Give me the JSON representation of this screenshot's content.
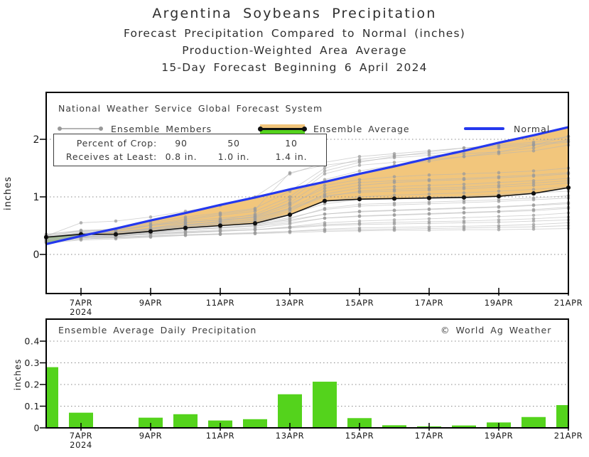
{
  "header": {
    "title": "Argentina Soybeans Precipitation",
    "subtitle1": "Forecast Precipitation Compared to Normal (inches)",
    "subtitle2": "Production-Weighted Area Average",
    "subtitle3": "15-Day Forecast Beginning 6 April 2024"
  },
  "legend": {
    "source": "National Weather Service Global Forecast System",
    "members_label": "Ensemble Members",
    "average_label": "Ensemble Average",
    "normal_label": "Normal"
  },
  "crop_box": {
    "row1_label": "Percent of Crop:",
    "row2_label": "Receives at Least:",
    "percents": [
      "90",
      "50",
      "10"
    ],
    "amounts": [
      "0.8 in.",
      "1.0 in.",
      "1.4 in."
    ]
  },
  "colors": {
    "normal_line": "#2438ee",
    "ensemble_member_line": "#b6b6b6",
    "ensemble_member_dot": "#999999",
    "ensemble_average_line": "#111111",
    "above_normal_fill": "#f2c67c",
    "below_normal_fill": "#54d31c",
    "bar_fill": "#54d31c",
    "gridline": "#8a8a8a",
    "axis": "#000000",
    "tick_text": "#1a1a1a"
  },
  "chart_data": [
    {
      "type": "line",
      "name": "cumulative-forecast",
      "ylabel": "inches",
      "ylim": [
        -0.68,
        2.81
      ],
      "y_ticks": [
        0,
        1,
        2
      ],
      "x_days": [
        6,
        7,
        8,
        9,
        10,
        11,
        12,
        13,
        14,
        15,
        16,
        17,
        18,
        19,
        20,
        21
      ],
      "x_tick_days": [
        7,
        9,
        11,
        13,
        15,
        17,
        19,
        21
      ],
      "x_tick_labels": [
        "7APR",
        "9APR",
        "11APR",
        "13APR",
        "15APR",
        "17APR",
        "19APR",
        "21APR"
      ],
      "x_year_label": "2024",
      "grid": true,
      "legend_position": "top-inside",
      "series": [
        {
          "name": "Normal",
          "values": [
            0.18,
            0.32,
            0.45,
            0.59,
            0.72,
            0.86,
            0.99,
            1.13,
            1.26,
            1.4,
            1.53,
            1.67,
            1.8,
            1.94,
            2.07,
            2.21
          ]
        },
        {
          "name": "Ensemble Average",
          "values": [
            0.3,
            0.35,
            0.35,
            0.4,
            0.46,
            0.5,
            0.54,
            0.69,
            0.93,
            0.96,
            0.97,
            0.98,
            0.99,
            1.01,
            1.06,
            1.16
          ]
        }
      ],
      "members": [
        [
          0.3,
          0.38,
          0.4,
          0.5,
          0.6,
          0.68,
          0.75,
          1.0,
          1.45,
          1.6,
          1.7,
          1.78,
          1.85,
          1.9,
          1.95,
          2.05
        ],
        [
          0.35,
          0.42,
          0.44,
          0.55,
          0.65,
          0.72,
          0.8,
          1.1,
          1.5,
          1.65,
          1.72,
          1.75,
          1.8,
          1.85,
          1.9,
          1.95
        ],
        [
          0.28,
          0.36,
          0.38,
          0.45,
          0.55,
          0.6,
          0.7,
          0.95,
          1.4,
          1.55,
          1.6,
          1.65,
          1.7,
          1.75,
          1.8,
          1.9
        ],
        [
          0.32,
          0.4,
          0.42,
          0.52,
          0.62,
          0.7,
          0.78,
          1.42,
          1.55,
          1.62,
          1.68,
          1.72,
          1.75,
          1.78,
          1.85,
          2.0
        ],
        [
          0.25,
          0.33,
          0.35,
          0.42,
          0.5,
          0.58,
          0.66,
          0.9,
          1.3,
          1.45,
          1.55,
          1.62,
          1.7,
          1.78,
          1.9,
          2.05
        ],
        [
          0.3,
          0.37,
          0.39,
          0.46,
          0.55,
          0.6,
          0.65,
          0.85,
          1.2,
          1.3,
          1.35,
          1.38,
          1.4,
          1.42,
          1.45,
          1.5
        ],
        [
          0.27,
          0.34,
          0.36,
          0.44,
          0.52,
          0.57,
          0.62,
          0.8,
          1.1,
          1.2,
          1.25,
          1.28,
          1.3,
          1.33,
          1.36,
          1.4
        ],
        [
          0.33,
          0.4,
          0.42,
          0.5,
          0.58,
          0.63,
          0.68,
          0.88,
          1.15,
          1.25,
          1.28,
          1.3,
          1.32,
          1.35,
          1.38,
          1.42
        ],
        [
          0.24,
          0.31,
          0.33,
          0.4,
          0.48,
          0.53,
          0.58,
          0.75,
          1.05,
          1.15,
          1.18,
          1.2,
          1.22,
          1.25,
          1.28,
          1.32
        ],
        [
          0.29,
          0.36,
          0.38,
          0.45,
          0.52,
          0.56,
          0.6,
          0.78,
          1.0,
          1.1,
          1.13,
          1.15,
          1.17,
          1.2,
          1.24,
          1.28
        ],
        [
          0.35,
          0.41,
          0.43,
          0.5,
          0.56,
          0.6,
          0.64,
          0.8,
          1.02,
          1.08,
          1.1,
          1.12,
          1.14,
          1.17,
          1.2,
          1.24
        ],
        [
          0.26,
          0.33,
          0.35,
          0.42,
          0.48,
          0.52,
          0.56,
          0.7,
          0.92,
          1.0,
          1.03,
          1.05,
          1.07,
          1.1,
          1.13,
          1.17
        ],
        [
          0.31,
          0.37,
          0.39,
          0.45,
          0.5,
          0.54,
          0.58,
          0.7,
          0.88,
          0.95,
          0.97,
          0.99,
          1.01,
          1.04,
          1.07,
          1.1
        ],
        [
          0.22,
          0.29,
          0.31,
          0.37,
          0.43,
          0.47,
          0.51,
          0.62,
          0.8,
          0.87,
          0.89,
          0.91,
          0.93,
          0.95,
          0.98,
          1.02
        ],
        [
          0.28,
          0.34,
          0.36,
          0.42,
          0.47,
          0.5,
          0.54,
          0.64,
          0.78,
          0.84,
          0.86,
          0.88,
          0.9,
          0.92,
          0.95,
          0.98
        ],
        [
          0.25,
          0.31,
          0.33,
          0.38,
          0.43,
          0.46,
          0.5,
          0.58,
          0.7,
          0.75,
          0.77,
          0.79,
          0.81,
          0.83,
          0.86,
          0.9
        ],
        [
          0.3,
          0.36,
          0.38,
          0.43,
          0.47,
          0.5,
          0.53,
          0.6,
          0.7,
          0.74,
          0.76,
          0.78,
          0.8,
          0.82,
          0.85,
          0.88
        ],
        [
          0.23,
          0.29,
          0.31,
          0.36,
          0.4,
          0.43,
          0.46,
          0.53,
          0.63,
          0.67,
          0.69,
          0.71,
          0.73,
          0.75,
          0.78,
          0.82
        ],
        [
          0.27,
          0.33,
          0.35,
          0.39,
          0.43,
          0.46,
          0.49,
          0.55,
          0.63,
          0.66,
          0.68,
          0.7,
          0.72,
          0.74,
          0.76,
          0.8
        ],
        [
          0.21,
          0.27,
          0.29,
          0.33,
          0.37,
          0.4,
          0.43,
          0.48,
          0.55,
          0.58,
          0.6,
          0.62,
          0.64,
          0.66,
          0.68,
          0.72
        ],
        [
          0.24,
          0.3,
          0.32,
          0.35,
          0.38,
          0.41,
          0.43,
          0.47,
          0.52,
          0.54,
          0.56,
          0.57,
          0.58,
          0.6,
          0.62,
          0.65
        ],
        [
          0.26,
          0.31,
          0.33,
          0.36,
          0.39,
          0.41,
          0.43,
          0.46,
          0.5,
          0.52,
          0.53,
          0.54,
          0.55,
          0.56,
          0.58,
          0.6
        ],
        [
          0.2,
          0.25,
          0.27,
          0.3,
          0.33,
          0.35,
          0.37,
          0.4,
          0.44,
          0.46,
          0.47,
          0.48,
          0.49,
          0.5,
          0.52,
          0.55
        ],
        [
          0.22,
          0.27,
          0.29,
          0.31,
          0.34,
          0.36,
          0.38,
          0.4,
          0.42,
          0.43,
          0.44,
          0.45,
          0.46,
          0.47,
          0.48,
          0.5
        ],
        [
          0.25,
          0.29,
          0.3,
          0.32,
          0.34,
          0.35,
          0.36,
          0.38,
          0.4,
          0.41,
          0.42,
          0.42,
          0.43,
          0.43,
          0.44,
          0.45
        ],
        [
          0.32,
          0.55,
          0.58,
          0.65,
          0.75,
          0.85,
          1.0,
          1.4,
          1.6,
          1.7,
          1.75,
          1.8,
          1.85,
          1.88,
          1.92,
          1.97
        ]
      ]
    },
    {
      "type": "bar",
      "name": "daily-precipitation",
      "title": "Ensemble Average Daily Precipitation",
      "watermark": "© World Ag Weather",
      "ylabel": "inches",
      "ylim": [
        0,
        0.5
      ],
      "y_ticks": [
        0,
        0.1,
        0.2,
        0.3,
        0.4
      ],
      "y_tick_labels": [
        "0",
        "0.1",
        "0.2",
        "0.3",
        "0.4"
      ],
      "x_days": [
        6,
        7,
        8,
        9,
        10,
        11,
        12,
        13,
        14,
        15,
        16,
        17,
        18,
        19,
        20,
        21
      ],
      "values": [
        0.28,
        0.07,
        0.002,
        0.047,
        0.063,
        0.034,
        0.04,
        0.155,
        0.213,
        0.045,
        0.012,
        0.007,
        0.011,
        0.025,
        0.05,
        0.105
      ],
      "x_tick_days": [
        7,
        9,
        11,
        13,
        15,
        17,
        19,
        21
      ],
      "x_tick_labels": [
        "7APR",
        "9APR",
        "11APR",
        "13APR",
        "15APR",
        "17APR",
        "19APR",
        "21APR"
      ],
      "x_year_label": "2024",
      "grid": true
    }
  ]
}
